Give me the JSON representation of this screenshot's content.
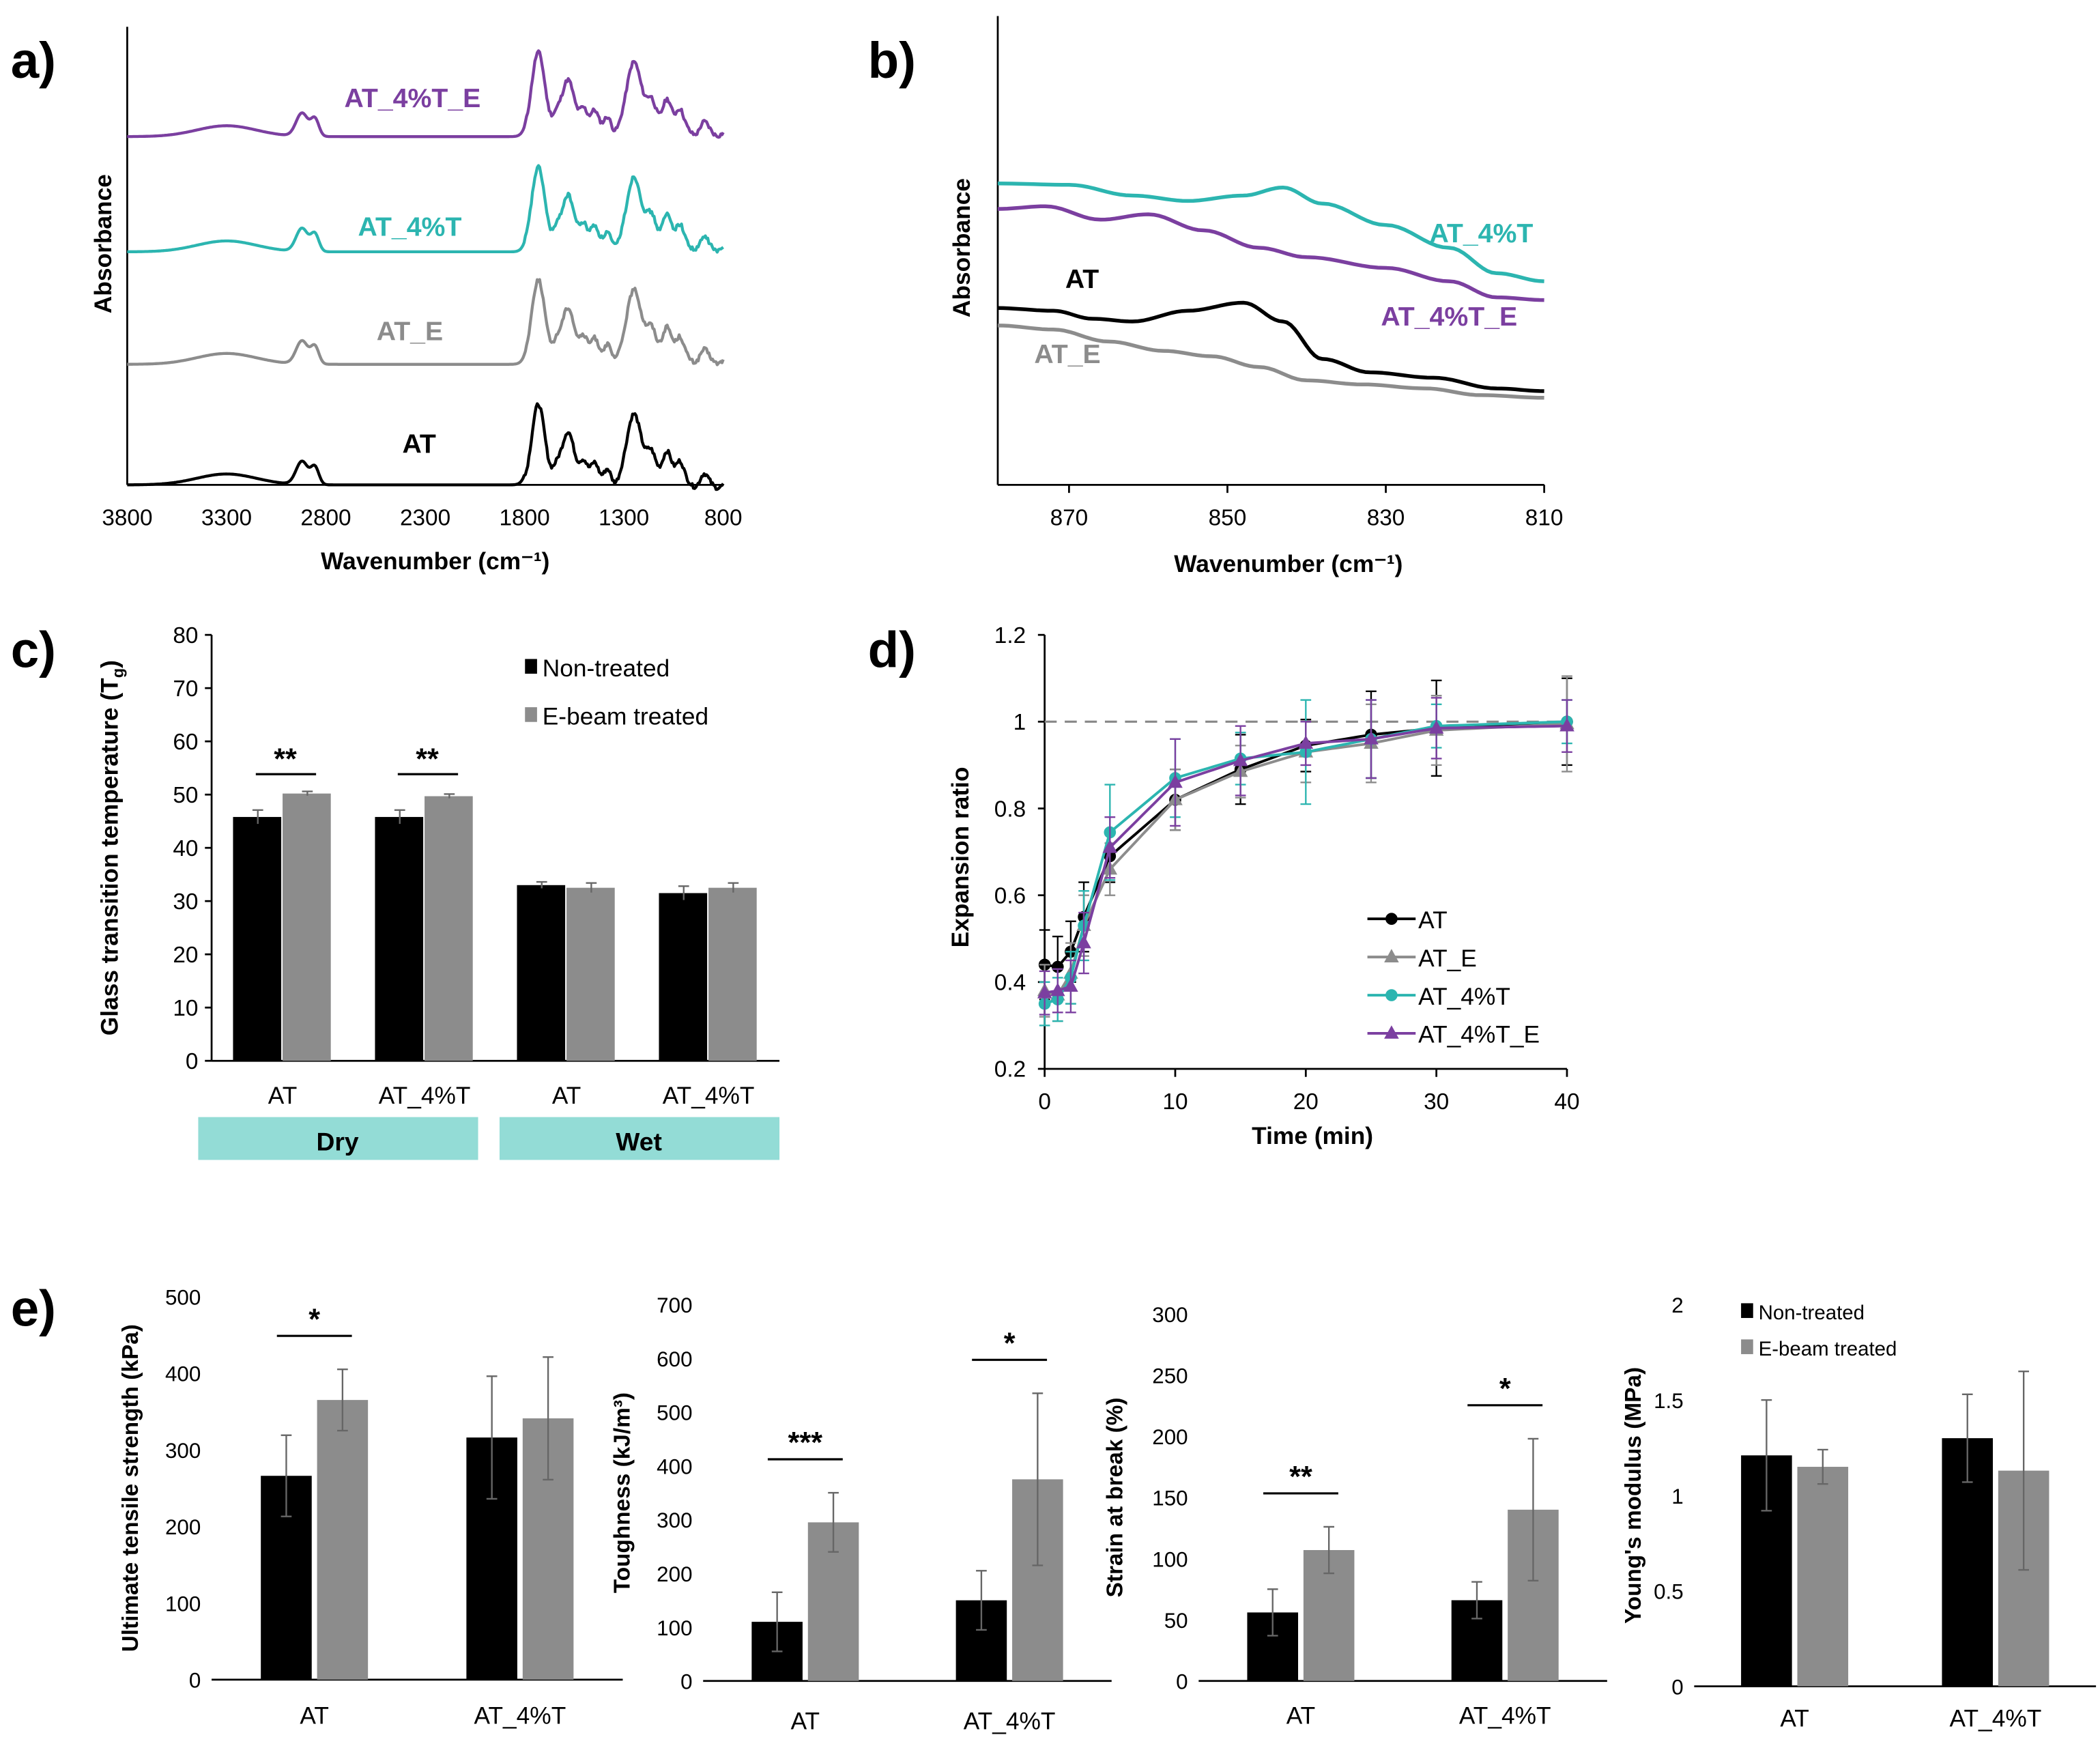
{
  "chart_data": [
    {
      "panel": "a)",
      "type": "line",
      "xlabel": "Wavenumber (cm⁻¹)",
      "ylabel": "Absorbance",
      "xticks": [
        "3800",
        "3300",
        "2800",
        "2300",
        "1800",
        "1300",
        "800"
      ],
      "xlim": [
        3800,
        800
      ],
      "series": [
        {
          "name": "AT_4%T_E",
          "color": "#7B3FA0"
        },
        {
          "name": "AT_4%T",
          "color": "#2CB5B0"
        },
        {
          "name": "AT_E",
          "color": "#8C8C8C"
        },
        {
          "name": "AT",
          "color": "#000000"
        }
      ]
    },
    {
      "panel": "b)",
      "type": "line",
      "xlabel": "Wavenumber (cm⁻¹)",
      "ylabel": "Absorbance",
      "xticks": [
        "870",
        "850",
        "830",
        "810"
      ],
      "xlim": [
        879,
        810
      ],
      "series": [
        {
          "name": "AT_4%T",
          "color": "#2CB5B0"
        },
        {
          "name": "AT_4%T_E",
          "color": "#7B3FA0"
        },
        {
          "name": "AT",
          "color": "#000000"
        },
        {
          "name": "AT_E",
          "color": "#8C8C8C"
        }
      ]
    },
    {
      "panel": "c)",
      "type": "bar",
      "ylabel": "Glass transition temperature (T",
      "ylabel_sub": "g",
      "ylabel_end": ")",
      "ylim": [
        0,
        80
      ],
      "yticks": [
        "0",
        "10",
        "20",
        "30",
        "40",
        "50",
        "60",
        "70",
        "80"
      ],
      "categories": [
        "AT",
        "AT_4%T",
        "AT",
        "AT_4%T"
      ],
      "groups": [
        {
          "label": "Dry"
        },
        {
          "label": "Wet"
        }
      ],
      "series": [
        {
          "name": "Non-treated",
          "color": "#000000",
          "values": [
            45.8,
            45.8,
            33.0,
            31.5
          ],
          "errors": [
            1.3,
            1.3,
            0.6,
            1.3
          ]
        },
        {
          "name": "E-beam treated",
          "color": "#8C8C8C",
          "values": [
            50.2,
            49.7,
            32.5,
            32.5
          ],
          "errors": [
            0.4,
            0.4,
            0.9,
            0.9
          ]
        }
      ],
      "significance": [
        {
          "category": 0,
          "label": "**"
        },
        {
          "category": 1,
          "label": "**"
        }
      ]
    },
    {
      "panel": "d)",
      "type": "scatter",
      "xlabel": "Time (min)",
      "ylabel": "Expansion ratio",
      "xlim": [
        0,
        40
      ],
      "ylim": [
        0.2,
        1.2
      ],
      "xticks": [
        "0",
        "10",
        "20",
        "30",
        "40"
      ],
      "yticks": [
        "0.2",
        "0.4",
        "0.6",
        "0.8",
        "1",
        "1.2"
      ],
      "reference_line": 1.0,
      "x": [
        0,
        1,
        2,
        3,
        5,
        10,
        15,
        20,
        25,
        30,
        40
      ],
      "series": [
        {
          "name": "AT",
          "color": "#000000",
          "marker": "circle",
          "values": [
            0.44,
            0.435,
            0.47,
            0.55,
            0.69,
            0.82,
            0.89,
            0.945,
            0.97,
            0.985,
            1.0
          ],
          "errors": [
            0.08,
            0.07,
            0.07,
            0.08,
            0.06,
            0.07,
            0.08,
            0.06,
            0.1,
            0.11,
            0.1
          ]
        },
        {
          "name": "AT_E",
          "color": "#8C8C8C",
          "marker": "triangle",
          "values": [
            0.38,
            0.37,
            0.42,
            0.53,
            0.66,
            0.82,
            0.885,
            0.93,
            0.95,
            0.98,
            0.995
          ],
          "errors": [
            0.06,
            0.06,
            0.07,
            0.07,
            0.06,
            0.07,
            0.06,
            0.07,
            0.09,
            0.08,
            0.11
          ]
        },
        {
          "name": "AT_4%T",
          "color": "#2CB5B0",
          "marker": "circle",
          "values": [
            0.35,
            0.36,
            0.41,
            0.53,
            0.745,
            0.87,
            0.915,
            0.93,
            0.96,
            0.99,
            1.0
          ],
          "errors": [
            0.05,
            0.05,
            0.06,
            0.08,
            0.11,
            0.09,
            0.06,
            0.12,
            0.09,
            0.05,
            0.05
          ]
        },
        {
          "name": "AT_4%T_E",
          "color": "#7B3FA0",
          "marker": "triangle",
          "values": [
            0.375,
            0.38,
            0.39,
            0.49,
            0.71,
            0.86,
            0.91,
            0.95,
            0.96,
            0.985,
            0.99
          ],
          "errors": [
            0.05,
            0.05,
            0.06,
            0.07,
            0.07,
            0.1,
            0.08,
            0.05,
            0.09,
            0.07,
            0.06
          ]
        }
      ]
    },
    {
      "panel": "e)",
      "type": "bar",
      "ylabel": "Ultimate tensile strength (kPa)",
      "ylim": [
        0,
        500
      ],
      "yticks": [
        "0",
        "100",
        "200",
        "300",
        "400",
        "500"
      ],
      "categories": [
        "AT",
        "AT_4%T"
      ],
      "series": [
        {
          "name": "Non-treated",
          "color": "#000000",
          "values": [
            266,
            316
          ],
          "errors": [
            53,
            80
          ]
        },
        {
          "name": "E-beam treated",
          "color": "#8C8C8C",
          "values": [
            365,
            341
          ],
          "errors": [
            40,
            80
          ]
        }
      ],
      "significance": [
        {
          "category": 0,
          "label": "*"
        }
      ]
    },
    {
      "type": "bar",
      "ylabel": "Toughness (kJ/m³)",
      "ylim": [
        0,
        700
      ],
      "yticks": [
        "0",
        "100",
        "200",
        "300",
        "400",
        "500",
        "600",
        "700"
      ],
      "categories": [
        "AT",
        "AT_4%T"
      ],
      "series": [
        {
          "name": "Non-treated",
          "color": "#000000",
          "values": [
            110,
            150
          ],
          "errors": [
            55,
            55
          ]
        },
        {
          "name": "E-beam treated",
          "color": "#8C8C8C",
          "values": [
            295,
            375
          ],
          "errors": [
            55,
            160
          ]
        }
      ],
      "significance": [
        {
          "category": 0,
          "label": "***"
        },
        {
          "category": 1,
          "label": "*"
        }
      ]
    },
    {
      "type": "bar",
      "ylabel": "Strain at break (%)",
      "ylim": [
        0,
        300
      ],
      "yticks": [
        "0",
        "50",
        "100",
        "150",
        "200",
        "250",
        "300"
      ],
      "categories": [
        "AT",
        "AT_4%T"
      ],
      "series": [
        {
          "name": "Non-treated",
          "color": "#000000",
          "values": [
            56,
            66
          ],
          "errors": [
            19,
            15
          ]
        },
        {
          "name": "E-beam treated",
          "color": "#8C8C8C",
          "values": [
            107,
            140
          ],
          "errors": [
            19,
            58
          ]
        }
      ],
      "significance": [
        {
          "category": 0,
          "label": "**"
        },
        {
          "category": 1,
          "label": "*"
        }
      ]
    },
    {
      "type": "bar",
      "ylabel": "Young's modulus (MPa)",
      "ylim": [
        0,
        2
      ],
      "yticks": [
        "0",
        "0.5",
        "1",
        "1.5",
        "2"
      ],
      "categories": [
        "AT",
        "AT_4%T"
      ],
      "legend": [
        "Non-treated",
        "E-beam treated"
      ],
      "series": [
        {
          "name": "Non-treated",
          "color": "#000000",
          "values": [
            1.21,
            1.3
          ],
          "errors": [
            0.29,
            0.23
          ]
        },
        {
          "name": "E-beam treated",
          "color": "#8C8C8C",
          "values": [
            1.15,
            1.13
          ],
          "errors": [
            0.09,
            0.52
          ]
        }
      ],
      "significance": []
    }
  ]
}
